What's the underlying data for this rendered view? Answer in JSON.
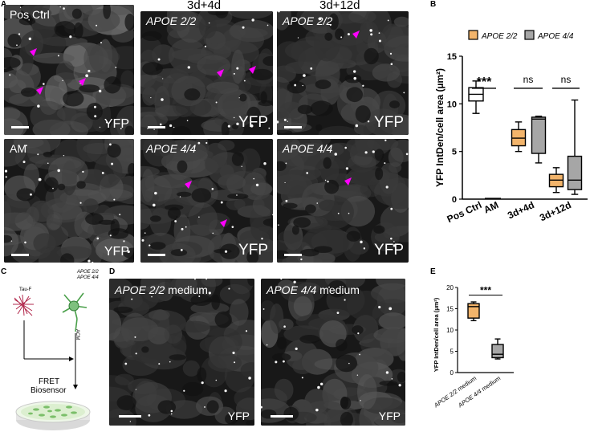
{
  "panels": {
    "A": {
      "letter": "A",
      "col_titles": [
        "3d+4d",
        "3d+12d"
      ],
      "tiles": [
        {
          "label": "Pos Ctrl",
          "italic": false,
          "yfp": "YFP",
          "arrows": 3
        },
        {
          "label": "APOE 2/2",
          "italic": true,
          "yfp": "YFP",
          "arrows": 2
        },
        {
          "label": "APOE 2/2",
          "italic": true,
          "yfp": "YFP",
          "arrows": 1
        },
        {
          "label": "AM",
          "italic": false,
          "yfp": "YFP",
          "arrows": 0
        },
        {
          "label": "APOE 4/4",
          "italic": true,
          "yfp": "YFP",
          "arrows": 2
        },
        {
          "label": "APOE 4/4",
          "italic": true,
          "yfp": "YFP",
          "arrows": 1
        }
      ]
    },
    "B": {
      "letter": "B"
    },
    "C": {
      "letter": "C",
      "tau_label": "Tau-F",
      "apoe_label_1": "APOE 2/2",
      "apoe_label_2": "APOE 4/4",
      "acm_label": "ACM",
      "fret_label_1": "FRET",
      "fret_label_2": "Biosensor"
    },
    "D": {
      "letter": "D",
      "tiles": [
        {
          "genotype": "APOE 2/2",
          "suffix": " medium",
          "yfp": "YFP"
        },
        {
          "genotype": "APOE 4/4",
          "suffix": " medium",
          "yfp": "YFP"
        }
      ]
    },
    "E": {
      "letter": "E"
    }
  },
  "colors": {
    "arrow": "#ff00ff",
    "apoe22": "#f2b46b",
    "apoe44": "#a6a6a6",
    "ctrl": "#ffffff"
  },
  "chart_data": [
    {
      "id": "B",
      "type": "box",
      "ylabel": "YFP IntDen/cell area (µm²)",
      "ylim": [
        0,
        15
      ],
      "yticks": [
        0,
        5,
        10,
        15
      ],
      "legend": [
        {
          "name": "APOE 2/2",
          "color": "#f2b46b"
        },
        {
          "name": "APOE 4/4",
          "color": "#a6a6a6"
        }
      ],
      "legend_position": "top",
      "groups": [
        {
          "label": "Pos Ctrl",
          "boxes": [
            {
              "series": "ctrl",
              "min": 9.0,
              "q1": 10.3,
              "median": 11.0,
              "q3": 11.7,
              "max": 12.4
            }
          ]
        },
        {
          "label": "AM",
          "boxes": [
            {
              "series": "ctrl",
              "min": 0.0,
              "q1": 0.0,
              "median": 0.05,
              "q3": 0.1,
              "max": 0.15
            }
          ]
        },
        {
          "label": "3d+4d",
          "boxes": [
            {
              "series": "APOE 2/2",
              "min": 5.0,
              "q1": 5.6,
              "median": 6.4,
              "q3": 7.3,
              "max": 8.1
            },
            {
              "series": "APOE 4/4",
              "min": 3.8,
              "q1": 4.8,
              "median": 8.4,
              "q3": 8.6,
              "max": 8.7
            }
          ]
        },
        {
          "label": "3d+12d",
          "boxes": [
            {
              "series": "APOE 2/2",
              "min": 0.7,
              "q1": 1.3,
              "median": 2.0,
              "q3": 2.6,
              "max": 3.3
            },
            {
              "series": "APOE 4/4",
              "min": 0.5,
              "q1": 1.0,
              "median": 2.0,
              "q3": 4.5,
              "max": 10.4
            }
          ]
        }
      ],
      "significance": [
        {
          "text": "***",
          "between": [
            "Pos Ctrl",
            "AM"
          ]
        },
        {
          "text": "ns",
          "group": "3d+4d"
        },
        {
          "text": "ns",
          "group": "3d+12d"
        }
      ]
    },
    {
      "id": "E",
      "type": "box",
      "ylabel": "YFP IntDen/cell area (µm²)",
      "ylim": [
        0,
        20
      ],
      "yticks": [
        0,
        5,
        10,
        15,
        20
      ],
      "groups": [
        {
          "label": "APOE 2/2 medium",
          "genotype": "APOE 2/2",
          "suffix": " medium",
          "color": "#f2b46b",
          "min": 12.2,
          "q1": 12.8,
          "median": 15.5,
          "q3": 16.2,
          "max": 16.6
        },
        {
          "label": "APOE 4/4 medium",
          "genotype": "APOE 4/4",
          "suffix": " medium",
          "color": "#a6a6a6",
          "min": 3.2,
          "q1": 3.5,
          "median": 4.3,
          "q3": 6.6,
          "max": 7.9
        }
      ],
      "significance": [
        {
          "text": "***",
          "between": [
            "APOE 2/2 medium",
            "APOE 4/4 medium"
          ]
        }
      ]
    }
  ]
}
